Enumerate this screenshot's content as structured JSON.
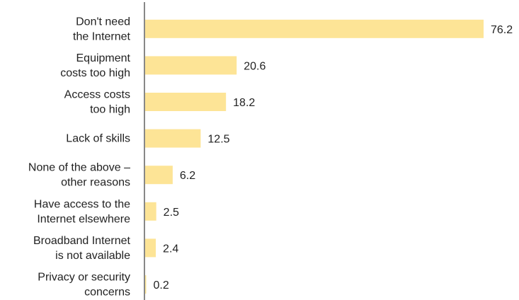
{
  "chart_data": {
    "type": "bar",
    "orientation": "horizontal",
    "categories": [
      "Don't need\nthe Internet",
      "Equipment\ncosts too high",
      "Access costs\ntoo high",
      "Lack of skills",
      "None of the above –\nother reasons",
      "Have access to the\nInternet elsewhere",
      "Broadband Internet\nis not available",
      "Privacy or security\nconcerns"
    ],
    "values": [
      76.2,
      20.6,
      18.2,
      12.5,
      6.2,
      2.5,
      2.4,
      0.2
    ],
    "value_labels": [
      "76.2",
      "20.6",
      "18.2",
      "12.5",
      "6.2",
      "2.5",
      "2.4",
      "0.2"
    ],
    "xlim": [
      0,
      76.2
    ],
    "grid": false,
    "colors": {
      "bar": "#fde496",
      "axis": "#888888"
    }
  }
}
